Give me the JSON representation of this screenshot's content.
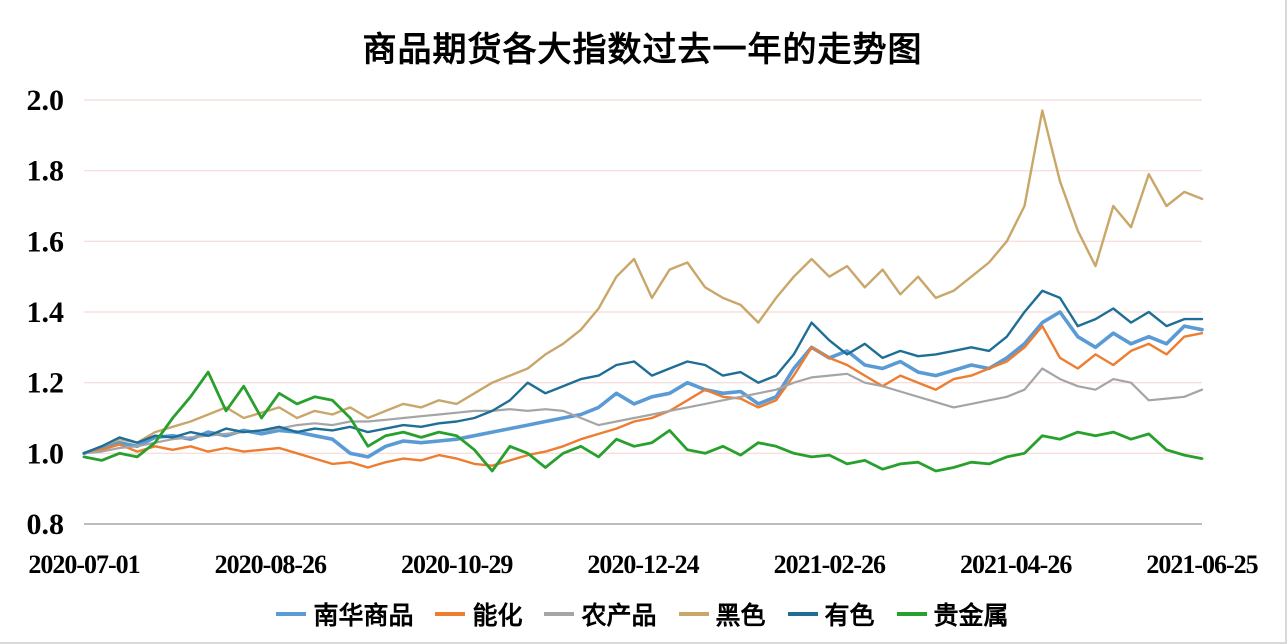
{
  "page": {
    "background": "#FFFFFF",
    "frame_border_color": "#D9D9D9"
  },
  "chart_data": {
    "type": "line",
    "title": "商品期货各大指数过去一年的走势图",
    "xlabel": "",
    "ylabel": "",
    "ylim": [
      0.8,
      2.0
    ],
    "y_ticks": [
      0.8,
      1.0,
      1.2,
      1.4,
      1.6,
      1.8,
      2.0
    ],
    "x_tick_labels": [
      "2020-07-01",
      "2020-08-26",
      "2020-10-29",
      "2020-12-24",
      "2021-02-26",
      "2021-04-26",
      "2021-06-25"
    ],
    "grid": "horizontal",
    "gridline_color": "#F6DFDC",
    "axis_line_color": "#A6A6A6",
    "legend_position": "bottom",
    "series": [
      {
        "name": "南华商品",
        "color": "#5B9BD5",
        "line_width": 3.6,
        "values": [
          1.0,
          1.015,
          1.03,
          1.02,
          1.045,
          1.05,
          1.04,
          1.06,
          1.05,
          1.065,
          1.055,
          1.065,
          1.06,
          1.05,
          1.04,
          1.0,
          0.99,
          1.02,
          1.035,
          1.03,
          1.035,
          1.04,
          1.05,
          1.06,
          1.07,
          1.08,
          1.09,
          1.1,
          1.11,
          1.13,
          1.17,
          1.14,
          1.16,
          1.17,
          1.2,
          1.18,
          1.17,
          1.175,
          1.14,
          1.16,
          1.24,
          1.3,
          1.27,
          1.29,
          1.25,
          1.24,
          1.26,
          1.23,
          1.22,
          1.235,
          1.25,
          1.24,
          1.27,
          1.31,
          1.37,
          1.4,
          1.33,
          1.3,
          1.34,
          1.31,
          1.33,
          1.31,
          1.36,
          1.35
        ]
      },
      {
        "name": "能化",
        "color": "#ED7D31",
        "line_width": 2.4,
        "values": [
          1.0,
          1.01,
          1.025,
          1.005,
          1.02,
          1.01,
          1.02,
          1.005,
          1.015,
          1.005,
          1.01,
          1.015,
          1.0,
          0.985,
          0.97,
          0.975,
          0.96,
          0.975,
          0.985,
          0.98,
          0.995,
          0.985,
          0.97,
          0.965,
          0.98,
          0.995,
          1.005,
          1.02,
          1.04,
          1.055,
          1.07,
          1.09,
          1.1,
          1.12,
          1.15,
          1.18,
          1.16,
          1.155,
          1.13,
          1.15,
          1.22,
          1.3,
          1.27,
          1.25,
          1.22,
          1.19,
          1.22,
          1.2,
          1.18,
          1.21,
          1.22,
          1.24,
          1.26,
          1.3,
          1.36,
          1.27,
          1.24,
          1.28,
          1.25,
          1.29,
          1.31,
          1.28,
          1.33,
          1.34
        ]
      },
      {
        "name": "农产品",
        "color": "#A5A5A5",
        "line_width": 2.2,
        "values": [
          1.0,
          1.005,
          1.015,
          1.02,
          1.03,
          1.04,
          1.045,
          1.05,
          1.055,
          1.06,
          1.065,
          1.07,
          1.08,
          1.085,
          1.08,
          1.09,
          1.09,
          1.095,
          1.1,
          1.105,
          1.11,
          1.115,
          1.12,
          1.12,
          1.125,
          1.12,
          1.125,
          1.12,
          1.1,
          1.08,
          1.09,
          1.1,
          1.11,
          1.12,
          1.13,
          1.14,
          1.15,
          1.16,
          1.17,
          1.18,
          1.2,
          1.215,
          1.22,
          1.225,
          1.2,
          1.19,
          1.175,
          1.16,
          1.145,
          1.13,
          1.14,
          1.15,
          1.16,
          1.18,
          1.24,
          1.21,
          1.19,
          1.18,
          1.21,
          1.2,
          1.15,
          1.155,
          1.16,
          1.18
        ]
      },
      {
        "name": "黑色",
        "color": "#C9A76B",
        "line_width": 2.4,
        "values": [
          1.0,
          1.02,
          1.04,
          1.03,
          1.06,
          1.075,
          1.09,
          1.11,
          1.13,
          1.1,
          1.115,
          1.13,
          1.1,
          1.12,
          1.11,
          1.13,
          1.1,
          1.12,
          1.14,
          1.13,
          1.15,
          1.14,
          1.17,
          1.2,
          1.22,
          1.24,
          1.28,
          1.31,
          1.35,
          1.41,
          1.5,
          1.55,
          1.44,
          1.52,
          1.54,
          1.47,
          1.44,
          1.42,
          1.37,
          1.44,
          1.5,
          1.55,
          1.5,
          1.53,
          1.47,
          1.52,
          1.45,
          1.5,
          1.44,
          1.46,
          1.5,
          1.54,
          1.6,
          1.7,
          1.97,
          1.77,
          1.63,
          1.53,
          1.7,
          1.64,
          1.79,
          1.7,
          1.74,
          1.72
        ]
      },
      {
        "name": "有色",
        "color": "#1E6E96",
        "line_width": 2.4,
        "values": [
          1.0,
          1.02,
          1.045,
          1.03,
          1.05,
          1.045,
          1.06,
          1.05,
          1.07,
          1.06,
          1.065,
          1.075,
          1.06,
          1.07,
          1.065,
          1.075,
          1.06,
          1.07,
          1.08,
          1.075,
          1.085,
          1.09,
          1.1,
          1.12,
          1.15,
          1.2,
          1.17,
          1.19,
          1.21,
          1.22,
          1.25,
          1.26,
          1.22,
          1.24,
          1.26,
          1.25,
          1.22,
          1.23,
          1.2,
          1.22,
          1.28,
          1.37,
          1.32,
          1.28,
          1.31,
          1.27,
          1.29,
          1.275,
          1.28,
          1.29,
          1.3,
          1.29,
          1.33,
          1.4,
          1.46,
          1.44,
          1.36,
          1.38,
          1.41,
          1.37,
          1.4,
          1.36,
          1.38,
          1.38
        ]
      },
      {
        "name": "贵金属",
        "color": "#28A02D",
        "line_width": 2.8,
        "values": [
          0.99,
          0.98,
          1.0,
          0.99,
          1.03,
          1.1,
          1.16,
          1.23,
          1.12,
          1.19,
          1.1,
          1.17,
          1.14,
          1.16,
          1.15,
          1.1,
          1.02,
          1.05,
          1.06,
          1.045,
          1.06,
          1.05,
          1.01,
          0.95,
          1.02,
          1.0,
          0.96,
          1.0,
          1.02,
          0.99,
          1.04,
          1.02,
          1.03,
          1.065,
          1.01,
          1.0,
          1.02,
          0.995,
          1.03,
          1.02,
          1.0,
          0.99,
          0.995,
          0.97,
          0.98,
          0.955,
          0.97,
          0.975,
          0.95,
          0.96,
          0.975,
          0.97,
          0.99,
          1.0,
          1.05,
          1.04,
          1.06,
          1.05,
          1.06,
          1.04,
          1.055,
          1.01,
          0.995,
          0.985
        ]
      }
    ]
  }
}
